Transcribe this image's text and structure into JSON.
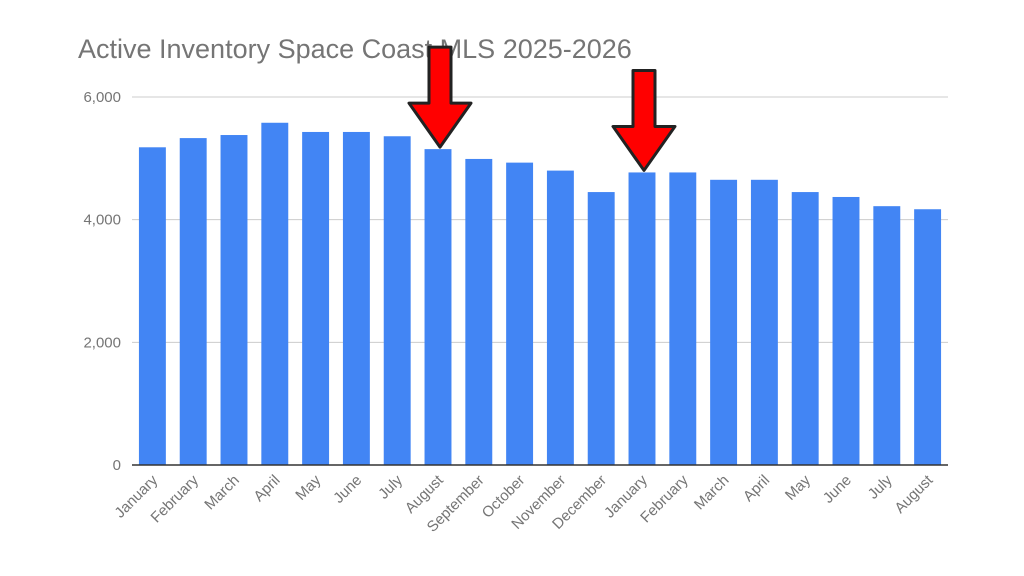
{
  "chart_data": {
    "type": "bar",
    "title": "Active Inventory Space Coast MLS 2025-2026",
    "categories": [
      "January",
      "February",
      "March",
      "April",
      "May",
      "June",
      "July",
      "August",
      "September",
      "October",
      "November",
      "December",
      "January",
      "February",
      "March",
      "April",
      "May",
      "June",
      "July",
      "August"
    ],
    "series": [
      {
        "values": [
          5180,
          5330,
          5380,
          5580,
          5430,
          5430,
          5360,
          5150,
          4990,
          4930,
          4800,
          4450,
          4770,
          4770,
          4650,
          4650,
          4450,
          4370,
          4220,
          4170
        ]
      }
    ],
    "ylim": [
      0,
      6000
    ],
    "yticks": [
      0,
      2000,
      4000,
      6000
    ],
    "ytick_labels": [
      "0",
      "2,000",
      "4,000",
      "6,000"
    ],
    "xlabel": "",
    "ylabel": "",
    "grid": true,
    "bar_color": "#4285F4",
    "annotations": [
      {
        "type": "arrow",
        "color": "#ff0000",
        "points_to_index": 7,
        "meaning": "red-arrow"
      },
      {
        "type": "arrow",
        "color": "#ff0000",
        "points_to_index": 12,
        "meaning": "red-arrow"
      }
    ]
  }
}
